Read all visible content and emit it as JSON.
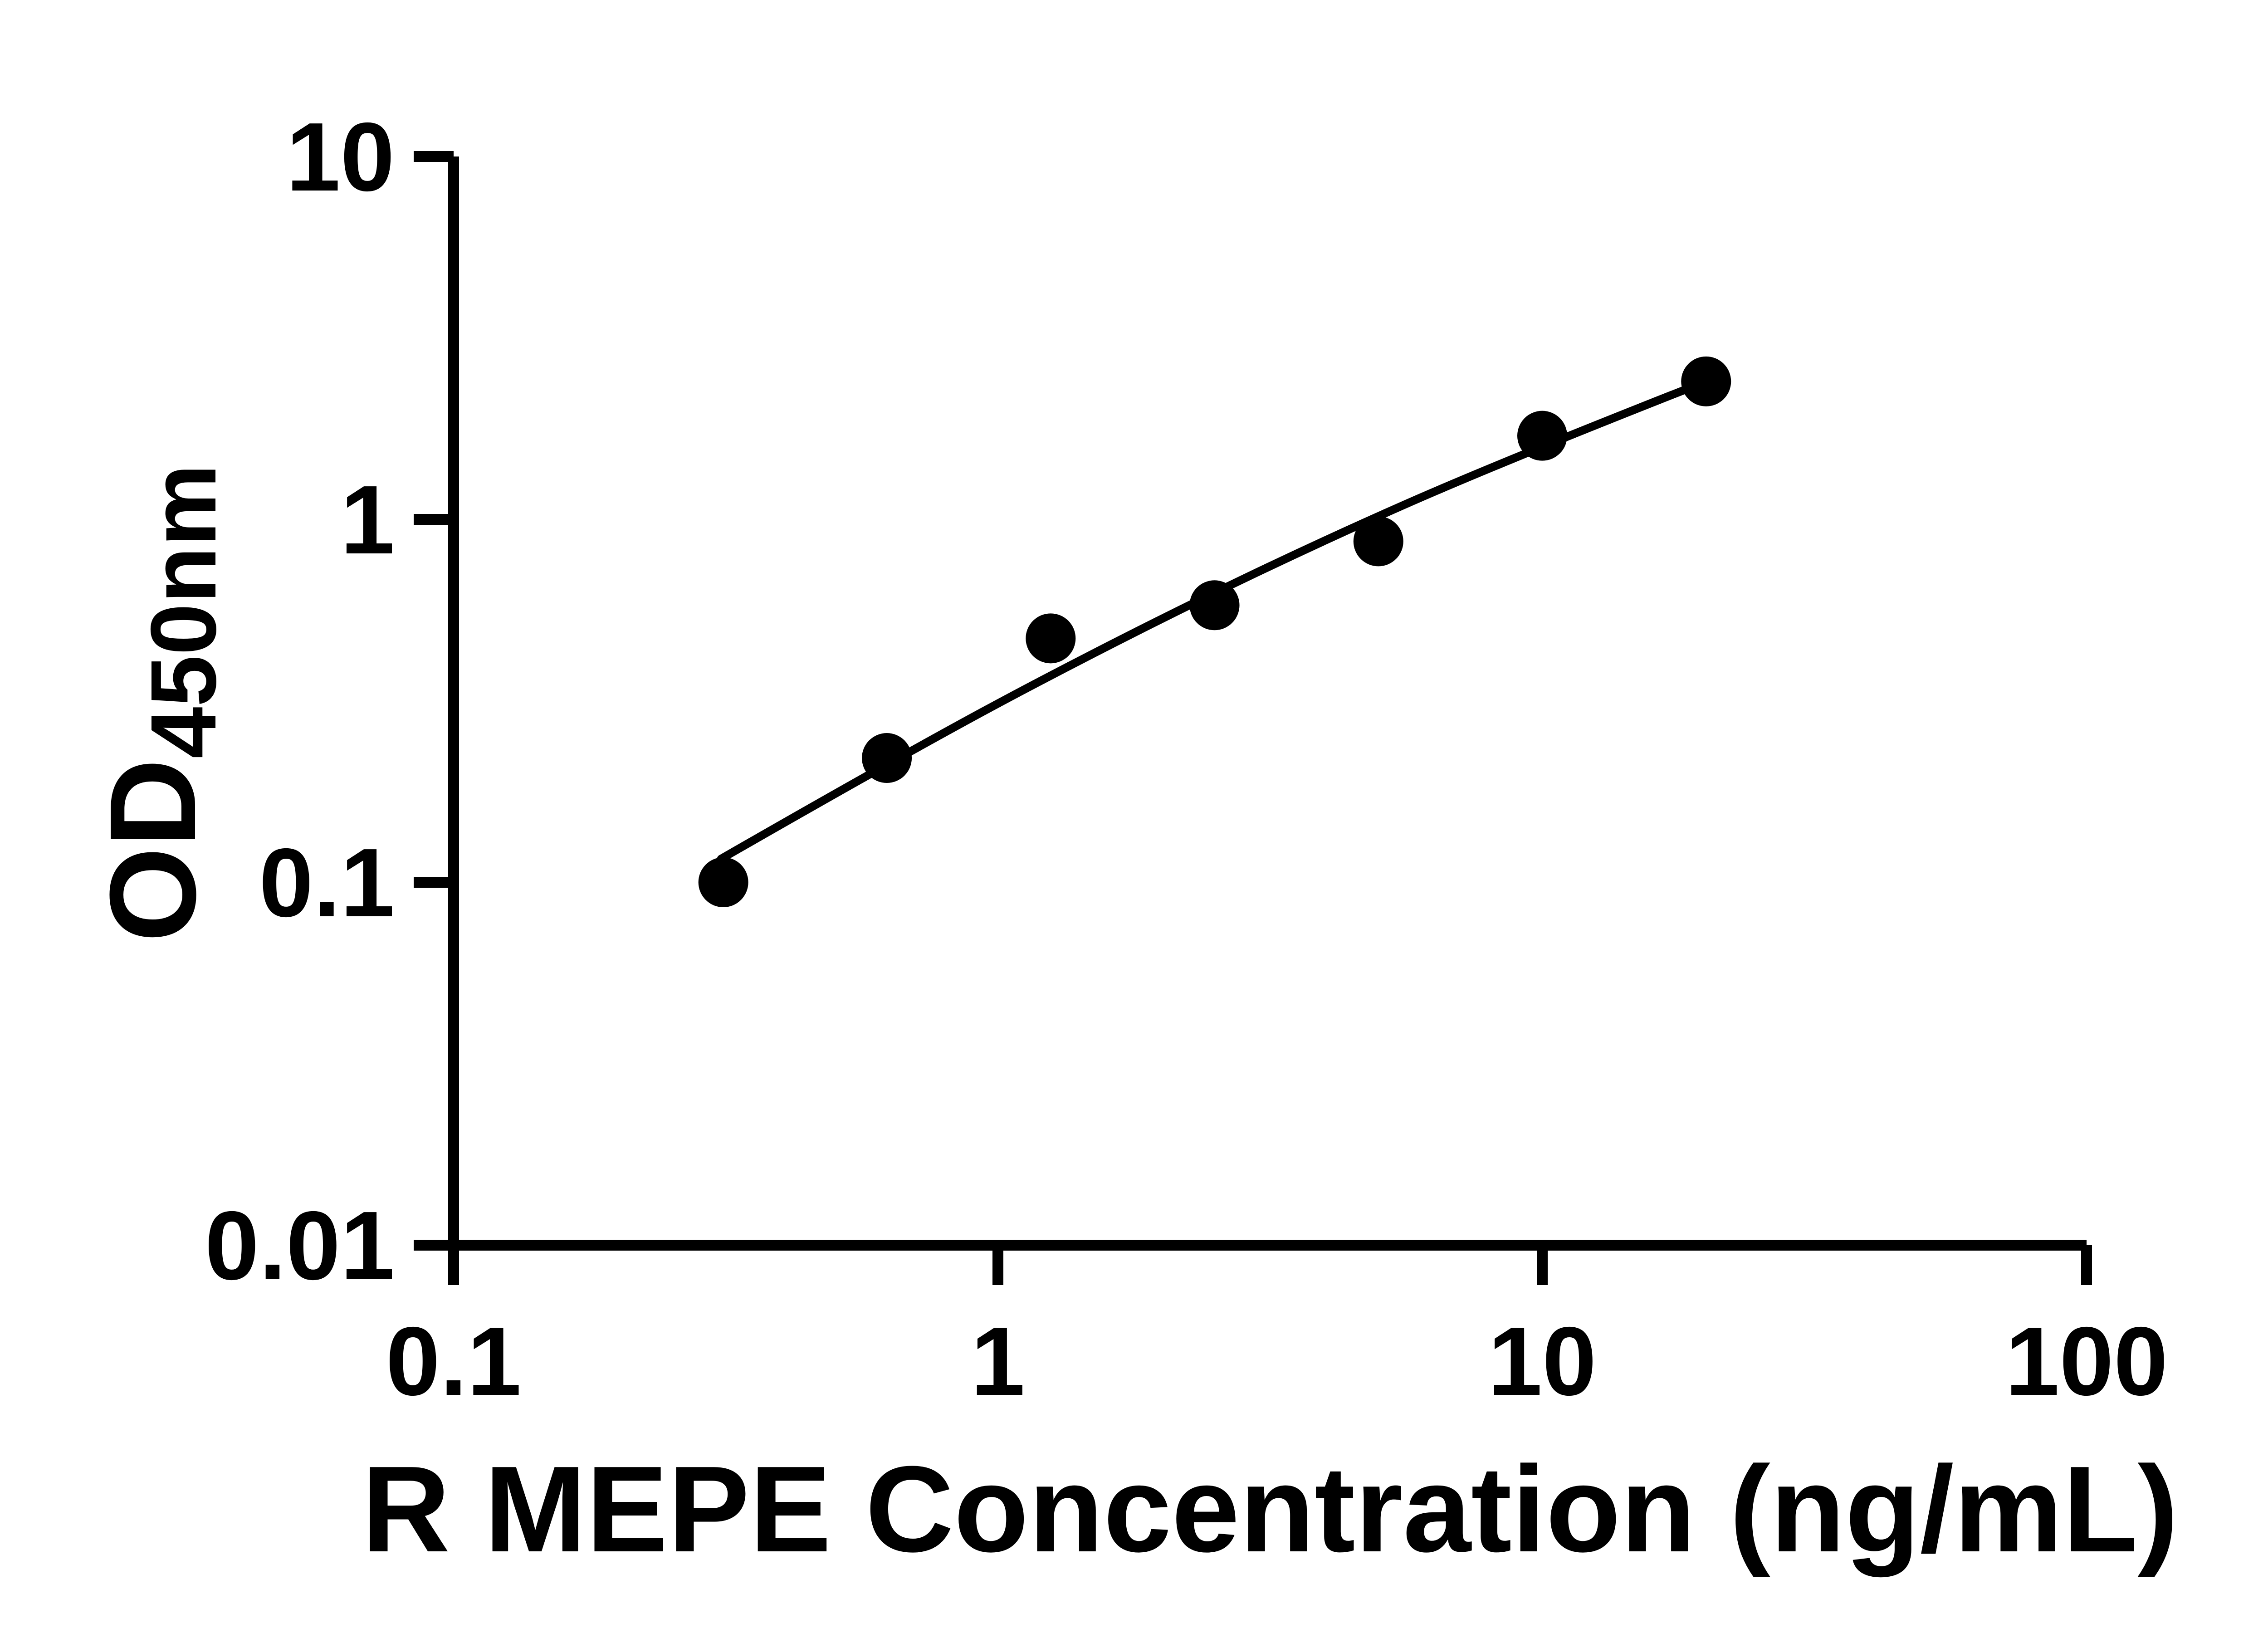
{
  "figure": {
    "background": "#ffffff",
    "accent": "#000000"
  },
  "chart_data": {
    "type": "scatter",
    "title": "",
    "xlabel": "R MEPE Concentration (ng/mL)",
    "ylabel_main": "OD",
    "ylabel_sub": "450nm",
    "x_scale": "log",
    "y_scale": "log",
    "xlim": [
      0.1,
      100
    ],
    "ylim": [
      0.01,
      10
    ],
    "grid": false,
    "legend": "none",
    "x_ticks": [
      {
        "value": 0.1,
        "label": "0.1"
      },
      {
        "value": 1,
        "label": "1"
      },
      {
        "value": 10,
        "label": "10"
      },
      {
        "value": 100,
        "label": "100"
      }
    ],
    "y_ticks": [
      {
        "value": 10,
        "label": "10"
      },
      {
        "value": 1,
        "label": "1"
      },
      {
        "value": 0.1,
        "label": "0.1"
      },
      {
        "value": 0.01,
        "label": "0.01"
      }
    ],
    "series": [
      {
        "name": "standard-curve-points",
        "marker": "filled-circle",
        "color": "#000000",
        "points": [
          {
            "x": 0.313,
            "y": 0.1
          },
          {
            "x": 0.625,
            "y": 0.22
          },
          {
            "x": 1.25,
            "y": 0.47
          },
          {
            "x": 2.5,
            "y": 0.58
          },
          {
            "x": 5,
            "y": 0.87
          },
          {
            "x": 10,
            "y": 1.7
          },
          {
            "x": 20,
            "y": 2.4
          }
        ]
      }
    ],
    "fit_curve": {
      "color": "#000000",
      "points": [
        [
          0.31,
          0.116
        ],
        [
          0.7,
          0.234
        ],
        [
          1.59,
          0.45
        ],
        [
          3.66,
          0.83
        ],
        [
          8.5,
          1.45
        ],
        [
          20,
          2.4
        ]
      ]
    }
  }
}
